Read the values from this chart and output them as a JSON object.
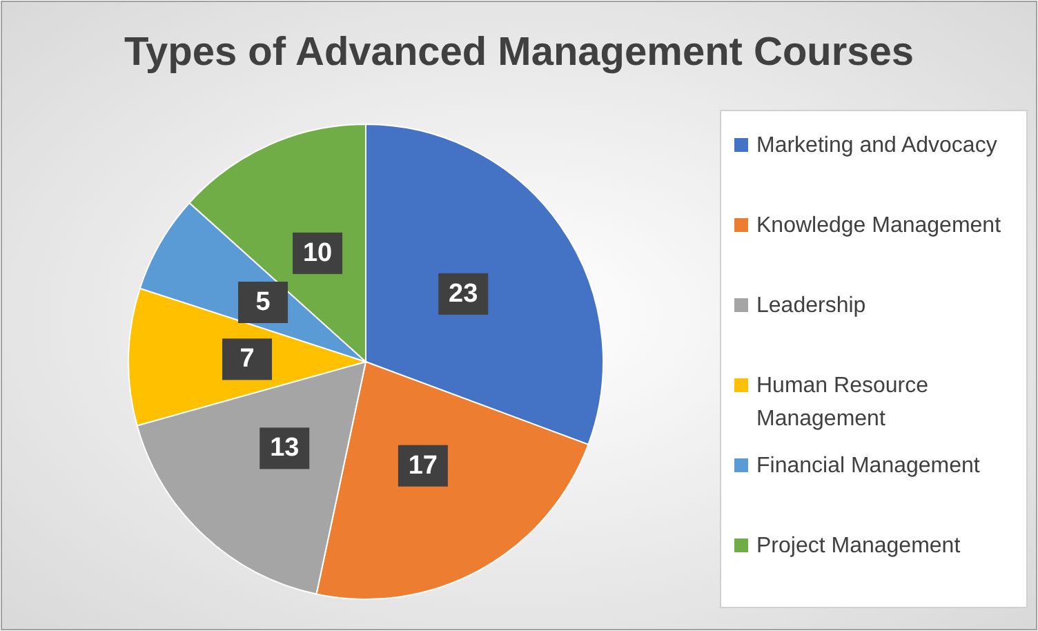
{
  "chart_data": {
    "type": "pie",
    "title": "Types of Advanced Management Courses",
    "categories": [
      "Marketing and Advocacy",
      "Knowledge Management",
      "Leadership",
      "Human Resource Management",
      "Financial Management",
      "Project Management"
    ],
    "values": [
      23,
      17,
      13,
      7,
      5,
      10
    ],
    "colors": [
      "#4472c4",
      "#ed7d31",
      "#a5a5a5",
      "#ffc000",
      "#5b9bd5",
      "#70ad47"
    ],
    "data_labels": true,
    "legend": "right"
  }
}
